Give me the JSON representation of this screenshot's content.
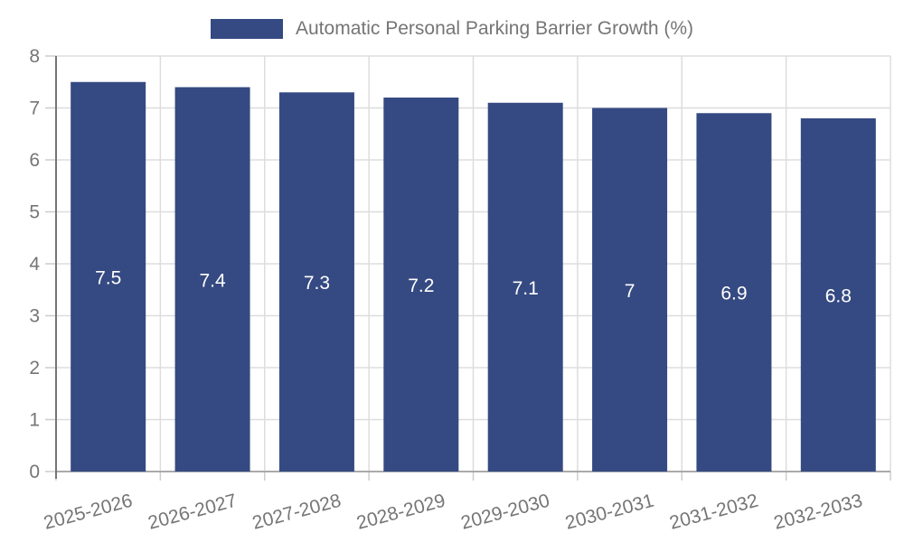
{
  "chart_data": {
    "type": "bar",
    "title": "Automatic Personal Parking Barrier Growth (%)",
    "categories": [
      "2025-2026",
      "2026-2027",
      "2027-2028",
      "2028-2029",
      "2029-2030",
      "2030-2031",
      "2031-2032",
      "2032-2033"
    ],
    "values": [
      7.5,
      7.4,
      7.3,
      7.2,
      7.1,
      7,
      6.9,
      6.8
    ],
    "bar_labels": [
      "7.5",
      "7.4",
      "7.3",
      "7.2",
      "7.1",
      "7",
      "6.9",
      "6.8"
    ],
    "xlabel": "",
    "ylabel": "",
    "ylim": [
      0,
      8
    ],
    "yticks": [
      0,
      1,
      2,
      3,
      4,
      5,
      6,
      7,
      8
    ],
    "grid": true,
    "legend_position": "top",
    "colors": {
      "bar": "#354a82",
      "bar_label": "#ffffff",
      "grid": "#dddddd",
      "tick": "#cccccc",
      "y_axis": "#757575",
      "x_axis": "#aaaaaa",
      "text": "#757575",
      "background": "#ffffff"
    }
  }
}
